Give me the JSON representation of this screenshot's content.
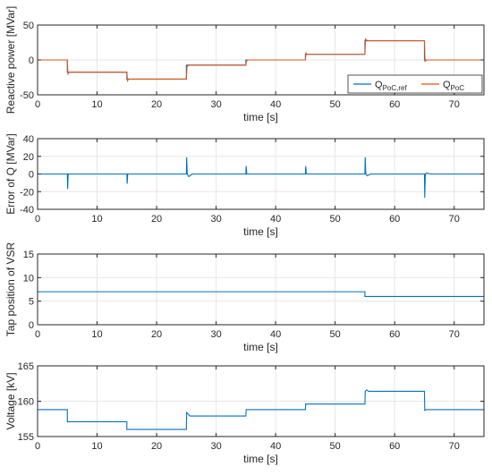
{
  "chart_data": [
    {
      "type": "line",
      "ylabel": "Reactive power [MVar]",
      "xlabel": "time [s]",
      "xlim": [
        0,
        75
      ],
      "ylim": [
        -50,
        50
      ],
      "xticks": [
        "0",
        "10",
        "20",
        "30",
        "40",
        "50",
        "60",
        "70"
      ],
      "yticks": [
        "-50",
        "0",
        "50"
      ],
      "grid": true,
      "legend_position": "bottom-right",
      "series": [
        {
          "name": "Q_PoC,ref",
          "label_main": "Q",
          "label_sub": "PoC,ref",
          "color": "#0072BD",
          "x": [
            0,
            5,
            5,
            15,
            15,
            25,
            25,
            35,
            35,
            45,
            45,
            55,
            55,
            65,
            65,
            75
          ],
          "y": [
            0,
            0,
            -17.5,
            -17.5,
            -27.5,
            -27.5,
            -7.5,
            -7.5,
            0,
            0,
            8,
            8,
            27.5,
            27.5,
            0,
            0
          ]
        },
        {
          "name": "Q_PoC",
          "label_main": "Q",
          "label_sub": "PoC",
          "color": "#D95319",
          "x": [
            0,
            5,
            5.1,
            5.3,
            15,
            15.1,
            15.3,
            25,
            25.1,
            25.4,
            35,
            35.1,
            35.3,
            45,
            45.1,
            45.3,
            55,
            55.1,
            55.4,
            65,
            65.1,
            65.4,
            75
          ],
          "y": [
            0,
            0,
            -20,
            -17.5,
            -17.5,
            -30,
            -27.5,
            -27.5,
            -10,
            -7.5,
            -7.5,
            -2,
            0,
            0,
            10,
            8,
            8,
            30,
            27.5,
            27.5,
            -2,
            0,
            0
          ]
        }
      ]
    },
    {
      "type": "line",
      "ylabel": "Error of Q [MVar]",
      "xlabel": "time [s]",
      "xlim": [
        0,
        75
      ],
      "ylim": [
        -40,
        40
      ],
      "xticks": [
        "0",
        "10",
        "20",
        "30",
        "40",
        "50",
        "60",
        "70"
      ],
      "yticks": [
        "-40",
        "-20",
        "0",
        "20",
        "40"
      ],
      "grid": true,
      "series": [
        {
          "name": "",
          "color": "#0072BD",
          "x": [
            0,
            5,
            5.05,
            5.15,
            15,
            15.05,
            15.15,
            25,
            25.05,
            25.15,
            25.4,
            26,
            35,
            35.05,
            35.15,
            45,
            45.05,
            45.15,
            55,
            55.05,
            55.15,
            55.4,
            56,
            65,
            65.05,
            65.15,
            65.4,
            66,
            75
          ],
          "y": [
            0,
            0,
            -17,
            0,
            0,
            -11,
            0,
            0,
            19,
            0,
            -3,
            0,
            0,
            9,
            0,
            0,
            9,
            0,
            0,
            19,
            0,
            -2,
            0,
            0,
            -27,
            0,
            1,
            0,
            0
          ]
        }
      ]
    },
    {
      "type": "line",
      "ylabel": "Tap position of VSR",
      "xlabel": "time [s]",
      "xlim": [
        0,
        75
      ],
      "ylim": [
        0,
        15
      ],
      "xticks": [
        "0",
        "10",
        "20",
        "30",
        "40",
        "50",
        "60",
        "70"
      ],
      "yticks": [
        "0",
        "5",
        "10",
        "15"
      ],
      "grid": true,
      "series": [
        {
          "name": "",
          "color": "#0072BD",
          "x": [
            0,
            55,
            55,
            75
          ],
          "y": [
            7,
            7,
            6,
            6
          ]
        }
      ]
    },
    {
      "type": "line",
      "ylabel": "Voltage [kV]",
      "xlabel": "time [s]",
      "xlim": [
        0,
        75
      ],
      "ylim": [
        155,
        165
      ],
      "xticks": [
        "0",
        "10",
        "20",
        "30",
        "40",
        "50",
        "60",
        "70"
      ],
      "yticks": [
        "155",
        "160",
        "165"
      ],
      "grid": true,
      "series": [
        {
          "name": "",
          "color": "#0072BD",
          "x": [
            0,
            5,
            5,
            15,
            15,
            25,
            25.05,
            25.3,
            25.6,
            35,
            35.05,
            35.3,
            45,
            45.05,
            45.3,
            55,
            55.05,
            55.3,
            55.6,
            65,
            65.05,
            65.3,
            75
          ],
          "y": [
            158.8,
            158.8,
            157.1,
            157.1,
            156,
            156,
            158.4,
            158.2,
            157.9,
            157.9,
            158.8,
            158.8,
            158.8,
            159.6,
            159.6,
            159.6,
            161.4,
            161.6,
            161.4,
            161.4,
            158.7,
            158.8,
            158.8
          ]
        }
      ]
    }
  ]
}
